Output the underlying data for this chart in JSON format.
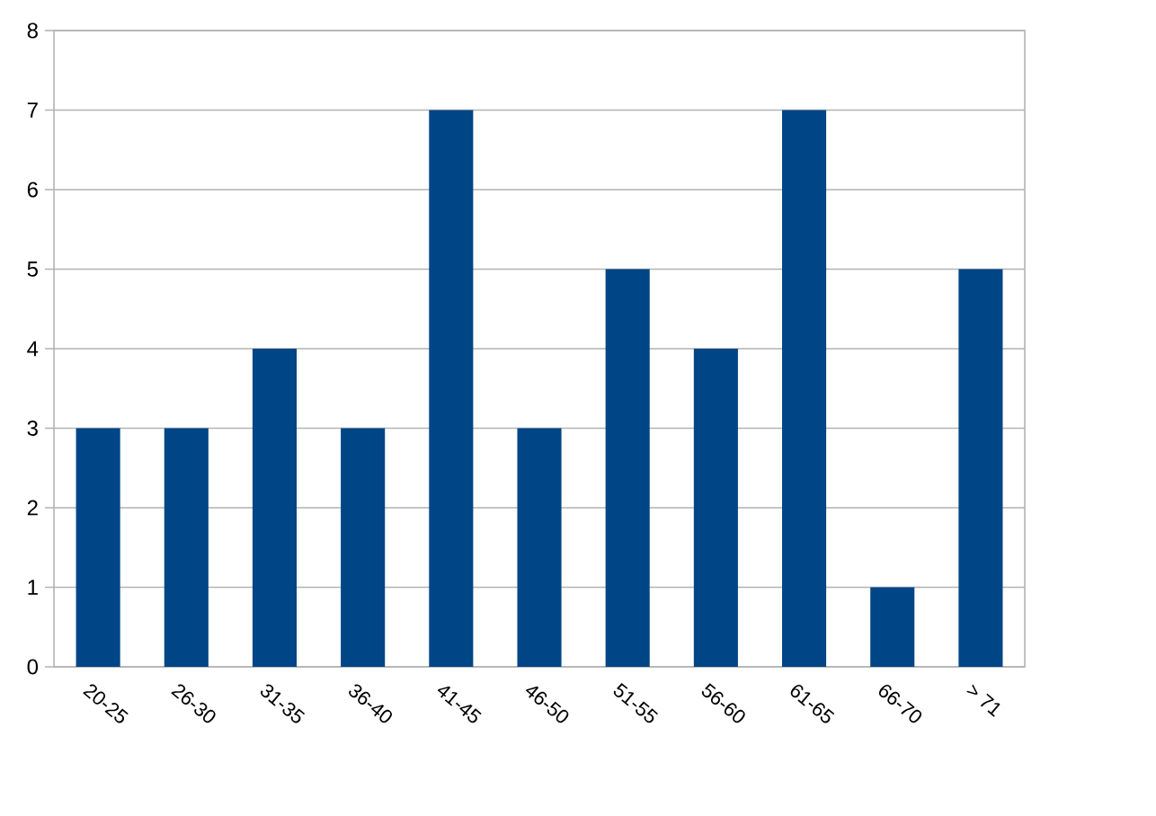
{
  "chart_data": {
    "type": "bar",
    "categories": [
      "20-25",
      "26-30",
      "31-35",
      "36-40",
      "41-45",
      "46-50",
      "51-55",
      "56-60",
      "61-65",
      "66-70",
      "> 71"
    ],
    "values": [
      3,
      3,
      4,
      3,
      7,
      3,
      5,
      4,
      7,
      1,
      5
    ],
    "color": "#004586",
    "ylim": [
      0,
      8
    ],
    "yticks": [
      0,
      1,
      2,
      3,
      4,
      5,
      6,
      7,
      8
    ],
    "grid": "y"
  }
}
